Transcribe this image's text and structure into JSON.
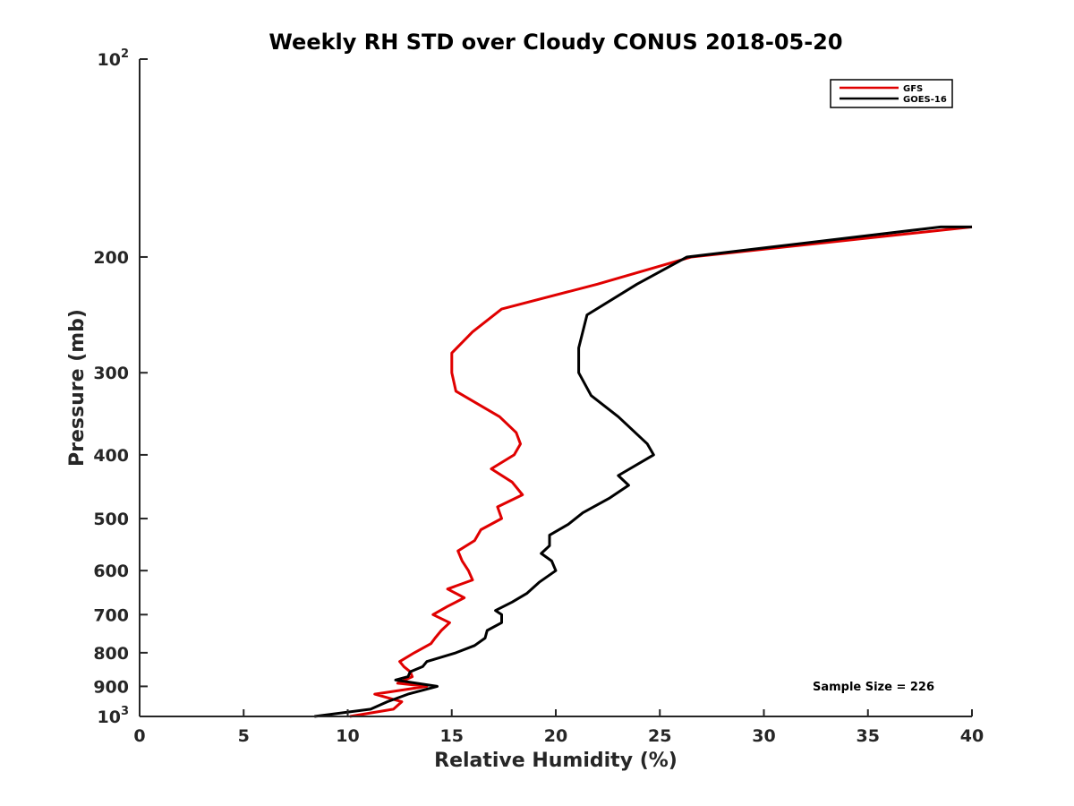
{
  "chart_data": {
    "type": "line",
    "title": "Weekly RH STD over Cloudy CONUS 2018-05-20",
    "xlabel": "Relative Humidity (%)",
    "ylabel": "Pressure (mb)",
    "xlim": [
      0,
      40
    ],
    "ylim": [
      1000,
      100
    ],
    "yscale": "log",
    "xticks": [
      0,
      5,
      10,
      15,
      20,
      25,
      30,
      35,
      40
    ],
    "yticks": [
      {
        "value": 100,
        "label": "10",
        "sup": "2"
      },
      {
        "value": 200,
        "label": "200"
      },
      {
        "value": 300,
        "label": "300"
      },
      {
        "value": 400,
        "label": "400"
      },
      {
        "value": 500,
        "label": "500"
      },
      {
        "value": 600,
        "label": "600"
      },
      {
        "value": 700,
        "label": "700"
      },
      {
        "value": 800,
        "label": "800"
      },
      {
        "value": 900,
        "label": "900"
      },
      {
        "value": 1000,
        "label": "10",
        "sup": "3"
      }
    ],
    "legend": {
      "position": "top-right"
    },
    "annotation": "Sample Size = 226",
    "series": [
      {
        "name": "GFS",
        "color": "#e00000",
        "points": [
          [
            10.1,
            1000
          ],
          [
            12.2,
            975
          ],
          [
            12.6,
            950
          ],
          [
            11.3,
            925
          ],
          [
            13.8,
            900
          ],
          [
            12.4,
            890
          ],
          [
            13.1,
            870
          ],
          [
            13.0,
            855
          ],
          [
            12.7,
            840
          ],
          [
            12.5,
            825
          ],
          [
            13.2,
            800
          ],
          [
            14.0,
            775
          ],
          [
            14.2,
            760
          ],
          [
            14.5,
            740
          ],
          [
            14.9,
            720
          ],
          [
            14.1,
            700
          ],
          [
            14.8,
            680
          ],
          [
            15.6,
            660
          ],
          [
            14.8,
            640
          ],
          [
            16.0,
            620
          ],
          [
            15.8,
            600
          ],
          [
            15.5,
            580
          ],
          [
            15.3,
            560
          ],
          [
            16.1,
            540
          ],
          [
            16.4,
            520
          ],
          [
            17.4,
            500
          ],
          [
            17.2,
            480
          ],
          [
            18.4,
            460
          ],
          [
            17.9,
            440
          ],
          [
            16.9,
            420
          ],
          [
            18.0,
            400
          ],
          [
            18.3,
            385
          ],
          [
            18.1,
            370
          ],
          [
            17.3,
            350
          ],
          [
            15.2,
            320
          ],
          [
            15.0,
            300
          ],
          [
            15.0,
            280
          ],
          [
            16.0,
            260
          ],
          [
            17.4,
            240
          ],
          [
            22.0,
            220
          ],
          [
            26.5,
            200
          ],
          [
            40.0,
            180
          ]
        ]
      },
      {
        "name": "GOES-16",
        "color": "#000000",
        "points": [
          [
            8.4,
            1000
          ],
          [
            11.1,
            975
          ],
          [
            11.9,
            950
          ],
          [
            12.9,
            925
          ],
          [
            14.3,
            900
          ],
          [
            12.3,
            880
          ],
          [
            12.9,
            870
          ],
          [
            13.0,
            855
          ],
          [
            13.6,
            840
          ],
          [
            13.8,
            825
          ],
          [
            15.2,
            800
          ],
          [
            16.1,
            780
          ],
          [
            16.6,
            760
          ],
          [
            16.7,
            740
          ],
          [
            17.4,
            720
          ],
          [
            17.4,
            700
          ],
          [
            17.1,
            690
          ],
          [
            17.9,
            670
          ],
          [
            18.6,
            650
          ],
          [
            19.2,
            625
          ],
          [
            20.0,
            600
          ],
          [
            19.8,
            580
          ],
          [
            19.3,
            565
          ],
          [
            19.7,
            550
          ],
          [
            19.7,
            530
          ],
          [
            20.6,
            510
          ],
          [
            21.3,
            490
          ],
          [
            22.6,
            465
          ],
          [
            23.5,
            445
          ],
          [
            23.0,
            430
          ],
          [
            24.7,
            400
          ],
          [
            24.4,
            385
          ],
          [
            23.0,
            350
          ],
          [
            21.7,
            325
          ],
          [
            21.1,
            300
          ],
          [
            21.1,
            275
          ],
          [
            21.5,
            245
          ],
          [
            23.9,
            220
          ],
          [
            26.3,
            200
          ],
          [
            38.5,
            180
          ],
          [
            40.0,
            180
          ]
        ]
      }
    ]
  }
}
